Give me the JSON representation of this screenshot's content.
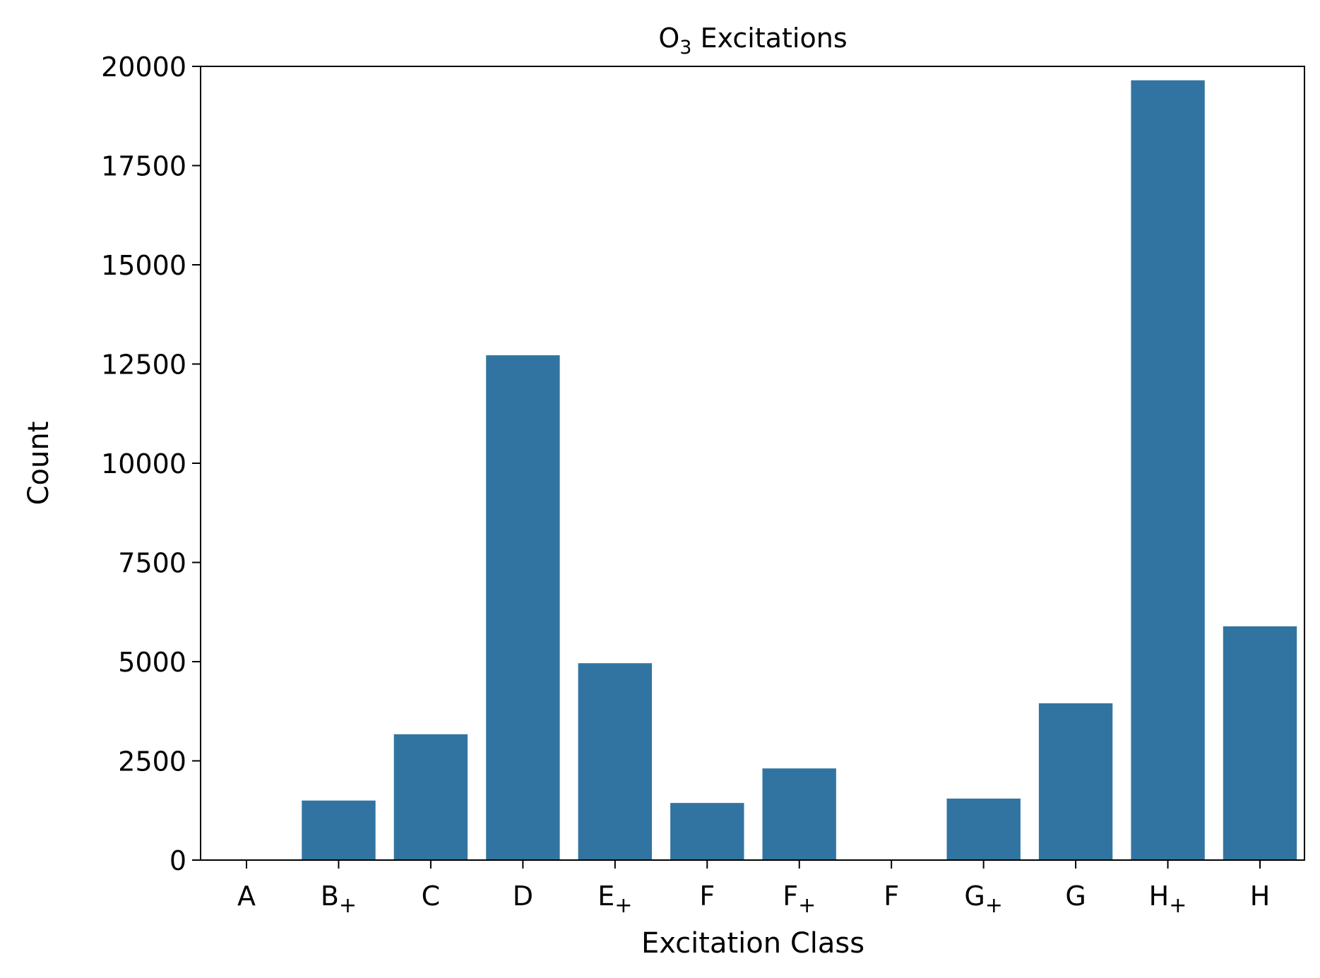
{
  "chart_data": {
    "type": "bar",
    "title": "O",
    "title_subscript": "3",
    "title_rest": " Excitations",
    "xlabel": "Excitation Class",
    "ylabel": "Count",
    "ylim": [
      0,
      20000
    ],
    "yticks": [
      0,
      2500,
      5000,
      7500,
      10000,
      12500,
      15000,
      17500,
      20000
    ],
    "ytick_labels": [
      "0",
      "2500",
      "5000",
      "7500",
      "10000",
      "12500",
      "15000",
      "17500",
      "20000"
    ],
    "categories": [
      {
        "base": "A",
        "sub": ""
      },
      {
        "base": "B",
        "sub": "+"
      },
      {
        "base": "C",
        "sub": ""
      },
      {
        "base": "D",
        "sub": ""
      },
      {
        "base": "E",
        "sub": "+"
      },
      {
        "base": "F",
        "sub": ""
      },
      {
        "base": "F",
        "sub": "+"
      },
      {
        "base": "F",
        "sub": ""
      },
      {
        "base": "G",
        "sub": "+"
      },
      {
        "base": "G",
        "sub": ""
      },
      {
        "base": "H",
        "sub": "+"
      },
      {
        "base": "H",
        "sub": ""
      }
    ],
    "values": [
      0,
      1500,
      3170,
      12720,
      4960,
      1440,
      2310,
      0,
      1550,
      3950,
      19650,
      5890
    ],
    "bar_color": "#3274a1",
    "grid": false,
    "legend": "none"
  }
}
